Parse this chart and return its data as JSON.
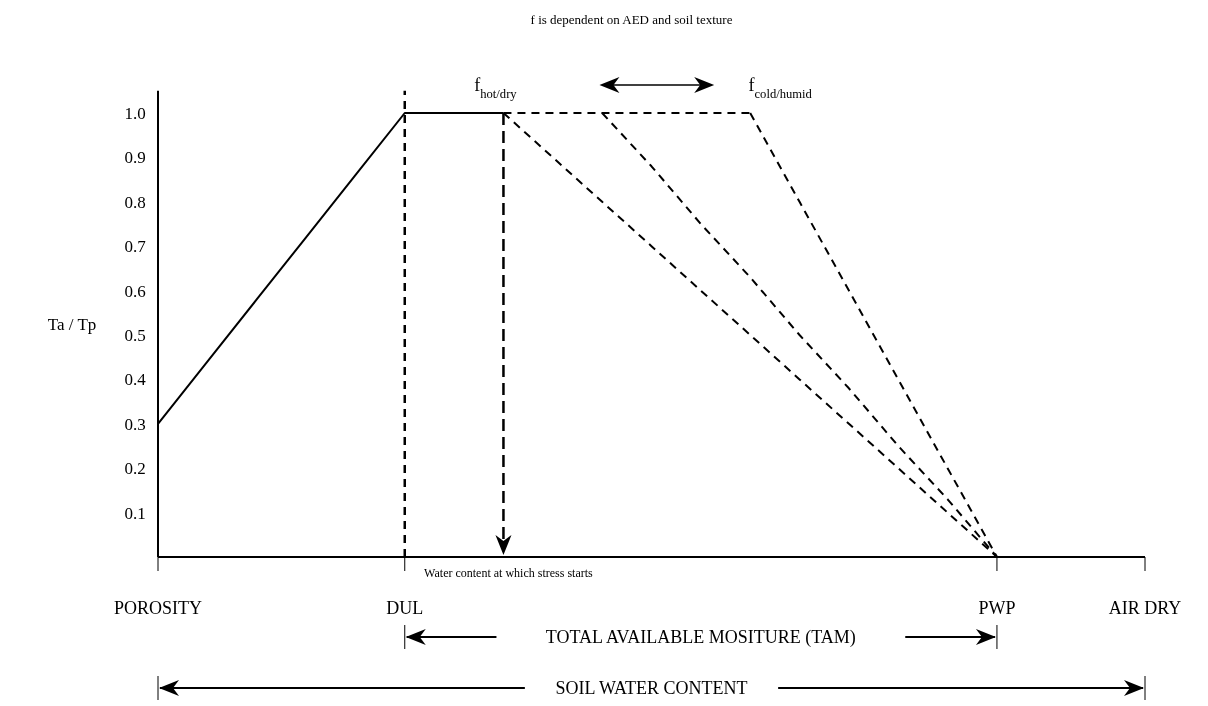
{
  "chart_data": {
    "type": "line",
    "ylabel": "Ta / Tp",
    "categories": [
      "POROSITY",
      null,
      null,
      null,
      null,
      "DUL",
      null,
      null,
      null,
      null,
      null,
      null,
      null,
      null,
      null,
      null,
      null,
      "PWP",
      null,
      null,
      "AIR DRY"
    ],
    "ylim": [
      0,
      1.05
    ],
    "yticks": [
      0.1,
      0.2,
      0.3,
      0.4,
      0.5,
      0.6,
      0.7,
      0.8,
      0.9,
      {
        "value": 1,
        "label": "1.0"
      }
    ],
    "series": [
      {
        "color": "#000000",
        "line_style": "solid",
        "values": [
          0.3,
          0.44,
          0.58,
          0.72,
          0.86,
          1.0,
          1.0,
          1.0,
          null,
          null,
          null,
          null,
          null,
          null,
          null,
          null,
          null,
          null,
          null,
          null,
          null
        ]
      },
      {
        "color": "#000000",
        "line_style": "dashed",
        "values": [
          null,
          null,
          null,
          null,
          null,
          null,
          null,
          1.0,
          1.0,
          1.0,
          1.0,
          1.0,
          1.0,
          null,
          null,
          null,
          null,
          null,
          null,
          null,
          null
        ]
      },
      {
        "color": "#000000",
        "line_style": "dashed",
        "values": [
          null,
          null,
          null,
          null,
          null,
          null,
          null,
          1.0,
          0.9,
          0.8,
          0.7,
          0.6,
          0.5,
          0.4,
          0.3,
          0.2,
          0.1,
          0,
          null,
          null,
          null
        ]
      },
      {
        "color": "#000000",
        "line_style": "dashed",
        "values": [
          null,
          null,
          null,
          null,
          null,
          null,
          null,
          null,
          null,
          1.0,
          0.88,
          0.75,
          0.63,
          0.5,
          0.38,
          0.25,
          0.13,
          0,
          null,
          null,
          null
        ]
      },
      {
        "color": "#000000",
        "line_style": "dashed",
        "values": [
          null,
          null,
          null,
          null,
          null,
          null,
          null,
          null,
          null,
          null,
          null,
          null,
          1.0,
          0.8,
          0.6,
          0.4,
          0.2,
          0,
          null,
          null,
          null
        ]
      }
    ],
    "ref_lines": [
      {
        "axis": "x",
        "value": "DUL",
        "line_style": "dashed",
        "color": "#000000"
      }
    ],
    "annotations": [
      "f is dependent on AED and soil texture",
      "f$_{hot/dry}$",
      "f$_{cold/humid}$",
      "Water content at which stress starts",
      "TOTAL AVAILABLE MOSITURE (TAM)",
      "SOIL WATER CONTENT"
    ]
  }
}
